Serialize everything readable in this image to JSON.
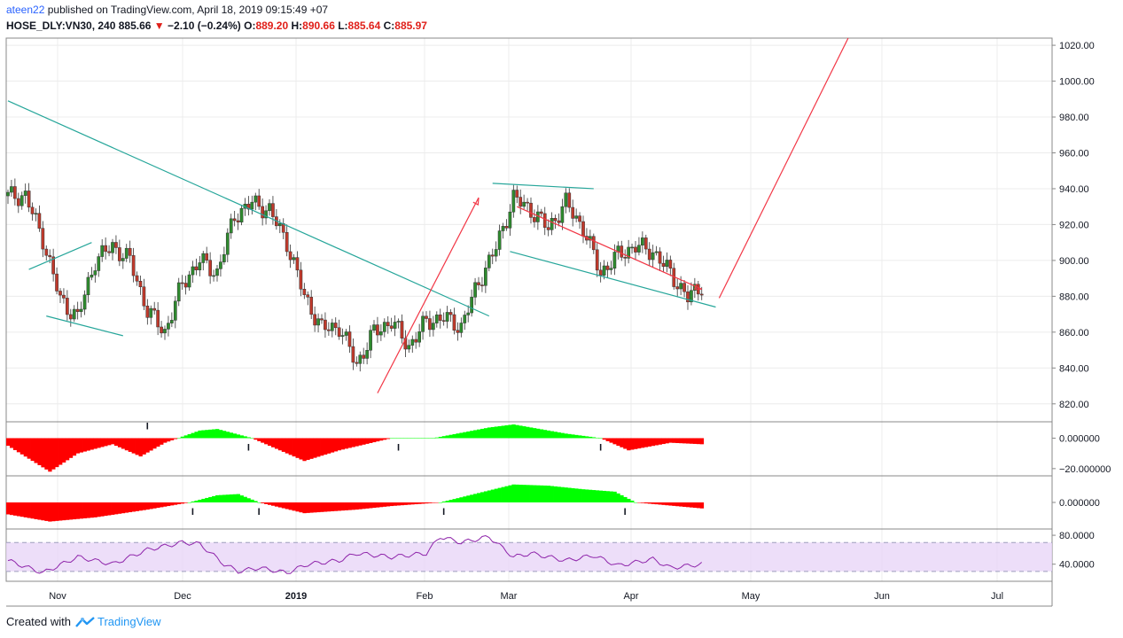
{
  "header": {
    "author": "ateen22",
    "published_text": "published on TradingView.com, April 18, 2019 09:15:49 +07",
    "symbol": "HOSE_DLY:VN30, 240",
    "last": "885.66",
    "change": "−2.10 (−0.24%)",
    "o_label": "O:",
    "o": "889.20",
    "h_label": "H:",
    "h": "890.66",
    "l_label": "L:",
    "l": "885.64",
    "c_label": "C:",
    "c": "885.97"
  },
  "footer": {
    "created_with": "Created with",
    "brand": "TradingView"
  },
  "colors": {
    "up": "#2e8b2e",
    "down": "#c0392b",
    "trend": "#26a69a",
    "arrow": "#f23645",
    "osc_pos": "#00ff00",
    "osc_neg": "#ff0000",
    "rsi": "#8e24aa"
  },
  "chart_data": [
    {
      "type": "candlestick",
      "x_tick_labels": [
        "Nov",
        "Dec",
        "2019",
        "Feb",
        "Mar",
        "Apr",
        "May",
        "Jun",
        "Jul"
      ],
      "y_tick_labels": [
        "1020.00",
        "1000.00",
        "980.00",
        "960.00",
        "940.00",
        "920.00",
        "900.00",
        "880.00",
        "860.00",
        "840.00",
        "820.00"
      ],
      "ylim": [
        810,
        1024
      ],
      "n_bars": 200,
      "x": [
        5,
        10,
        15,
        20,
        25,
        30,
        35,
        40,
        45,
        50,
        55,
        60,
        65,
        70,
        75,
        80,
        85,
        90,
        95,
        100,
        105,
        110,
        115,
        120,
        125,
        130,
        135,
        140,
        145,
        150,
        155,
        160,
        165,
        170,
        175,
        180,
        185,
        190,
        195,
        199
      ],
      "close": [
        936,
        912,
        878,
        868,
        900,
        908,
        900,
        872,
        860,
        887,
        900,
        893,
        925,
        932,
        928,
        910,
        880,
        862,
        863,
        842,
        860,
        866,
        852,
        866,
        868,
        863,
        888,
        907,
        935,
        928,
        918,
        932,
        918,
        893,
        903,
        908,
        905,
        893,
        879,
        886
      ],
      "trendlines": [
        {
          "from": [
            0,
            989
          ],
          "to": [
            138,
            869
          ]
        },
        {
          "from": [
            6,
            895
          ],
          "to": [
            24,
            910
          ]
        },
        {
          "from": [
            11,
            869
          ],
          "to": [
            33,
            858
          ]
        },
        {
          "from": [
            139,
            943
          ],
          "to": [
            168,
            940
          ]
        },
        {
          "from": [
            144,
            905
          ],
          "to": [
            203,
            874
          ]
        }
      ],
      "arrows": [
        {
          "from": [
            106,
            826
          ],
          "to": [
            135,
            935
          ]
        },
        {
          "from": [
            146,
            930
          ],
          "to": [
            199,
            884
          ]
        },
        {
          "from": [
            204,
            879
          ],
          "to": [
            241,
            1024
          ]
        }
      ]
    },
    {
      "type": "area",
      "name": "",
      "y_tick_labels": [
        "0.000000",
        "−20.000000"
      ],
      "ylim": [
        -23,
        9
      ],
      "x": [
        0,
        12,
        20,
        30,
        38,
        45,
        55,
        60,
        70,
        85,
        95,
        110,
        122,
        138,
        145,
        160,
        170,
        178,
        190,
        199
      ],
      "values": [
        -5,
        -22,
        -10,
        -4,
        -12,
        -3,
        5,
        6,
        0,
        -15,
        -8,
        0,
        0,
        7,
        9,
        3,
        0,
        -8,
        -3,
        -4
      ],
      "markers": [
        {
          "x": 40,
          "label": "I",
          "color": "#00c853"
        },
        {
          "x": 69,
          "label": "I",
          "color": "#e0201a"
        },
        {
          "x": 112,
          "label": "I",
          "color": "#00c853"
        },
        {
          "x": 170,
          "label": "I",
          "color": "#e0201a"
        }
      ]
    },
    {
      "type": "area",
      "name": "",
      "y_tick_labels": [
        "0.000000"
      ],
      "ylim": [
        -40,
        40
      ],
      "x": [
        0,
        12,
        25,
        40,
        52,
        60,
        66,
        72,
        85,
        100,
        110,
        124,
        138,
        145,
        155,
        165,
        174,
        180,
        199
      ],
      "values": [
        -20,
        -32,
        -25,
        -12,
        0,
        12,
        14,
        0,
        -18,
        -12,
        -6,
        0,
        20,
        30,
        28,
        22,
        18,
        0,
        -10
      ],
      "markers": [
        {
          "x": 53,
          "label": "I",
          "color": "#00c853"
        },
        {
          "x": 72,
          "label": "I",
          "color": "#e0201a"
        },
        {
          "x": 125,
          "label": "I",
          "color": "#00c853"
        },
        {
          "x": 177,
          "label": "I",
          "color": "#e0201a"
        }
      ]
    },
    {
      "type": "line",
      "name": "",
      "y_tick_labels": [
        "80.0000",
        "40.0000"
      ],
      "ylim": [
        20,
        85
      ],
      "bands": [
        70,
        30
      ],
      "x": [
        0,
        10,
        20,
        30,
        40,
        50,
        55,
        62,
        66,
        72,
        80,
        86,
        95,
        100,
        110,
        120,
        124,
        130,
        138,
        145,
        150,
        160,
        168,
        175,
        185,
        190,
        199
      ],
      "values": [
        45,
        28,
        50,
        40,
        60,
        70,
        68,
        40,
        30,
        35,
        28,
        40,
        45,
        55,
        50,
        55,
        78,
        70,
        78,
        50,
        55,
        45,
        52,
        38,
        47,
        35,
        40
      ]
    }
  ]
}
